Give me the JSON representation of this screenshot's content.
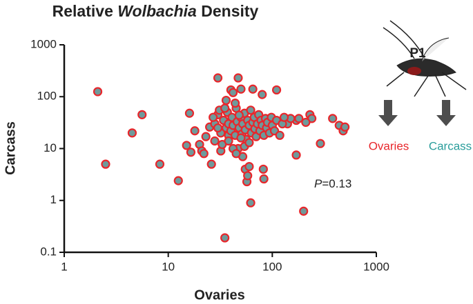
{
  "chart_data": {
    "type": "scatter",
    "title": [
      "Relative",
      "Wolbachia",
      "Density"
    ],
    "x_label": "Ovaries",
    "y_label": "Carcass",
    "annotation": [
      "P",
      "=0.13"
    ],
    "xscale": "log",
    "yscale": "log",
    "xlim": [
      1,
      1000
    ],
    "ylim": [
      0.1,
      1000
    ],
    "xticks": [
      1,
      10,
      100,
      1000
    ],
    "yticks": [
      0.1,
      1,
      10,
      100,
      1000
    ],
    "marker_fill": "#6f9a9b",
    "marker_edge": "#e8262b",
    "x": [
      2.1,
      2.5,
      4.5,
      5.6,
      8.3,
      12.5,
      15,
      16,
      16.5,
      18,
      20,
      21,
      22,
      23,
      25,
      26,
      28,
      30,
      32,
      35,
      38,
      40,
      42,
      47,
      50,
      52,
      55,
      57,
      58,
      60,
      62,
      65,
      80,
      82,
      83,
      110,
      170,
      200,
      290,
      380,
      440,
      480,
      500,
      170,
      180,
      230,
      240,
      210,
      140,
      150,
      28,
      30,
      32,
      34,
      36,
      37,
      38,
      40,
      41,
      42,
      44,
      45,
      46,
      48,
      50,
      51,
      52,
      54,
      55,
      56,
      58,
      60,
      62,
      63,
      65,
      67,
      68,
      70,
      72,
      74,
      76,
      78,
      80,
      83,
      86,
      88,
      90,
      94,
      98,
      100,
      105,
      110,
      118,
      125,
      130,
      36,
      44,
      33,
      47,
      54,
      60,
      38,
      42,
      45,
      50,
      30,
      27,
      31,
      35,
      48
    ],
    "y": [
      125,
      5,
      20,
      45,
      5,
      2.4,
      11.5,
      48,
      8.5,
      22,
      12,
      9,
      8,
      17,
      26,
      5,
      14,
      230,
      9,
      0.19,
      18,
      135,
      120,
      230,
      140,
      7,
      4,
      2.3,
      3,
      4.5,
      0.9,
      140,
      110,
      4,
      2.6,
      135,
      7.5,
      0.62,
      12.5,
      38,
      28,
      22,
      26,
      35,
      38,
      45,
      38,
      32,
      30,
      38,
      30,
      45,
      20,
      35,
      25,
      50,
      30,
      22,
      40,
      28,
      18,
      60,
      33,
      25,
      40,
      19,
      30,
      48,
      23,
      15,
      35,
      28,
      55,
      20,
      32,
      40,
      24,
      17,
      30,
      45,
      22,
      35,
      28,
      18,
      38,
      25,
      32,
      20,
      40,
      28,
      22,
      35,
      18,
      30,
      40,
      85,
      75,
      12,
      10,
      11,
      13,
      14,
      10,
      8,
      16,
      25,
      40,
      55,
      60,
      44
    ]
  },
  "diagram": {
    "label": "P1",
    "outputs": [
      "Ovaries",
      "Carcass"
    ],
    "output_colors": [
      "#e8262b",
      "#2a9d9b"
    ]
  }
}
